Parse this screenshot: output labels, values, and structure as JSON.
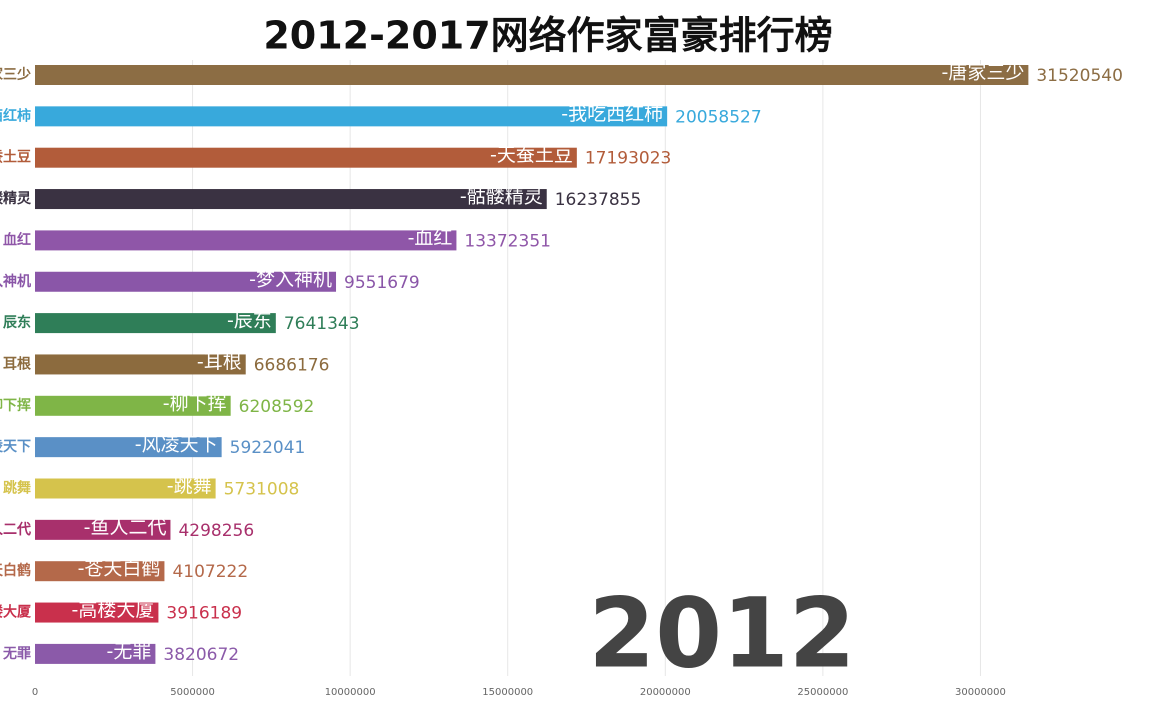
{
  "chart_data": {
    "type": "bar",
    "orientation": "horizontal",
    "title": "2012-2017网络作家富豪排行榜",
    "annotation": "2012",
    "categories": [
      "唐家三少",
      "我吃西红柿",
      "天蚕土豆",
      "骷髅精灵",
      "血红",
      "梦入神机",
      "辰东",
      "耳根",
      "柳下挥",
      "风凌天下",
      "跳舞",
      "鱼人二代",
      "苍天白鹤",
      "高楼大厦",
      "无罪"
    ],
    "bar_labels": [
      "-唐家三少",
      "-我吃西红柿",
      "-天蚕土豆",
      "-骷髅精灵",
      "-血红",
      "-梦入神机",
      "-辰东",
      "-耳根",
      "-柳下挥",
      "-风凌天下",
      "-跳舞",
      "-鱼人二代",
      "-苍天白鹤",
      "-高楼大厦",
      "-无罪"
    ],
    "values": [
      31520540,
      20058527,
      17193023,
      16237855,
      13372351,
      9551679,
      7641343,
      6686176,
      6208592,
      5922041,
      5731008,
      4298256,
      4107222,
      3916189,
      3820672
    ],
    "colors": [
      "#8c6d44",
      "#38a9dc",
      "#b25c3a",
      "#3a3242",
      "#8f56a8",
      "#8a56a8",
      "#2f7e58",
      "#8c6b3e",
      "#7fb547",
      "#5a90c6",
      "#d5c34c",
      "#a8306c",
      "#b4694a",
      "#c9304c",
      "#8b5aa9"
    ],
    "xlim": [
      0,
      33000000
    ],
    "xticks": [
      0,
      5000000,
      10000000,
      15000000,
      20000000,
      25000000,
      30000000
    ],
    "grid": true
  }
}
